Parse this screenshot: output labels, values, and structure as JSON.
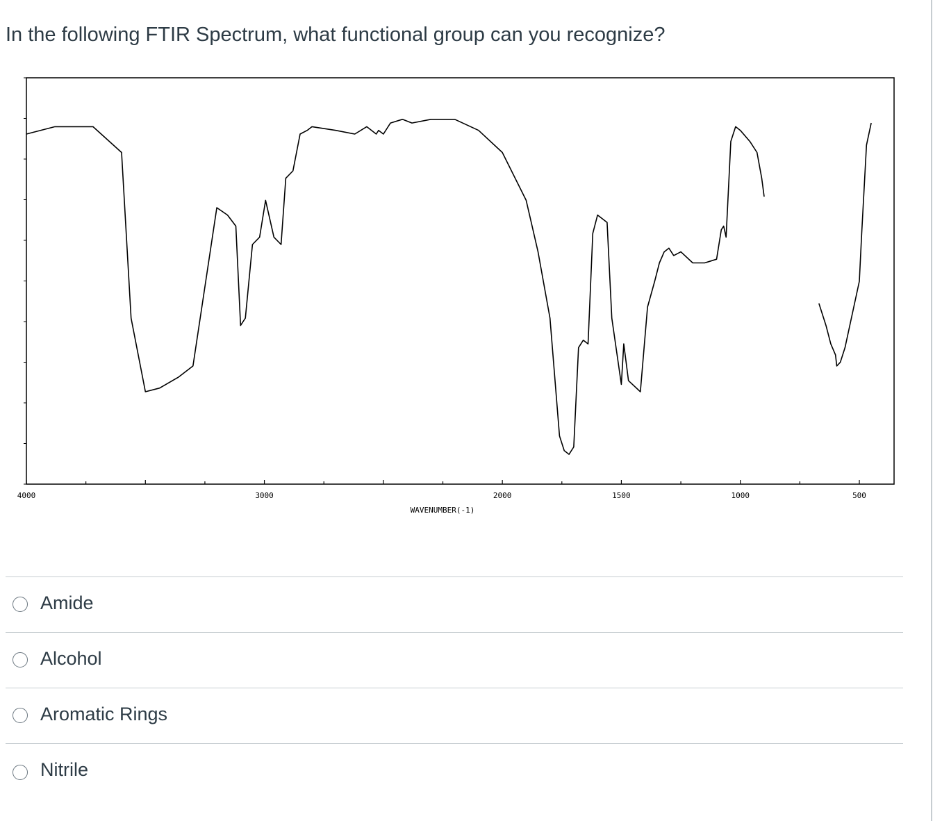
{
  "question": {
    "text": "In the following FTIR Spectrum, what functional group can you recognize?"
  },
  "chart_data": {
    "type": "line",
    "xlabel": "WAVENUMBER(-1)",
    "ylabel": "",
    "title": "",
    "x_reversed": true,
    "xlim": [
      4000,
      450
    ],
    "ylim": [
      0,
      100
    ],
    "xticks": [
      "4000",
      "3000",
      "2000",
      "1500",
      "1000",
      "500"
    ],
    "grid": false,
    "series": [
      {
        "x": [
          4000,
          3880,
          3720,
          3600,
          3560,
          3500,
          3440,
          3360,
          3300,
          3200,
          3155,
          3120,
          3100,
          3080,
          3050,
          3020,
          2995,
          2960,
          2930,
          2910,
          2880,
          2850,
          2820,
          2800,
          2700,
          2620,
          2570,
          2530,
          2520,
          2500,
          2470,
          2420,
          2380,
          2300,
          2200,
          2100,
          2000,
          1900,
          1850,
          1800,
          1760,
          1740,
          1720,
          1700,
          1680,
          1660,
          1640,
          1620,
          1600,
          1580,
          1560,
          1540,
          1500,
          1490,
          1470,
          1420,
          1390,
          1360,
          1340,
          1320,
          1300,
          1280,
          1250,
          1200,
          1150,
          1100,
          1080,
          1070,
          1060,
          1040,
          1020,
          1000,
          960,
          930,
          910,
          900
        ],
        "y": [
          90,
          92,
          92,
          85,
          40,
          20,
          21,
          24,
          27,
          70,
          68,
          65,
          38,
          40,
          60,
          62,
          72,
          62,
          60,
          78,
          80,
          90,
          91,
          92,
          91,
          90,
          92,
          90,
          91,
          90,
          93,
          94,
          93,
          94,
          94,
          91,
          85,
          72,
          58,
          40,
          8,
          4,
          3,
          5,
          32,
          34,
          33,
          63,
          68,
          67,
          66,
          40,
          22,
          33,
          23,
          20,
          43,
          50,
          55,
          58,
          59,
          57,
          58,
          55,
          55,
          56,
          64,
          65,
          62,
          88,
          92,
          91,
          88,
          85,
          78,
          73
        ]
      },
      {
        "x": [
          670,
          640,
          620,
          600,
          595,
          580,
          560,
          500,
          490,
          470,
          450
        ],
        "y": [
          44,
          38,
          33,
          30,
          27,
          28,
          32,
          50,
          63,
          87,
          93
        ]
      }
    ]
  },
  "answers": [
    {
      "label": "Amide"
    },
    {
      "label": "Alcohol"
    },
    {
      "label": "Aromatic Rings"
    },
    {
      "label": "Nitrile"
    }
  ]
}
